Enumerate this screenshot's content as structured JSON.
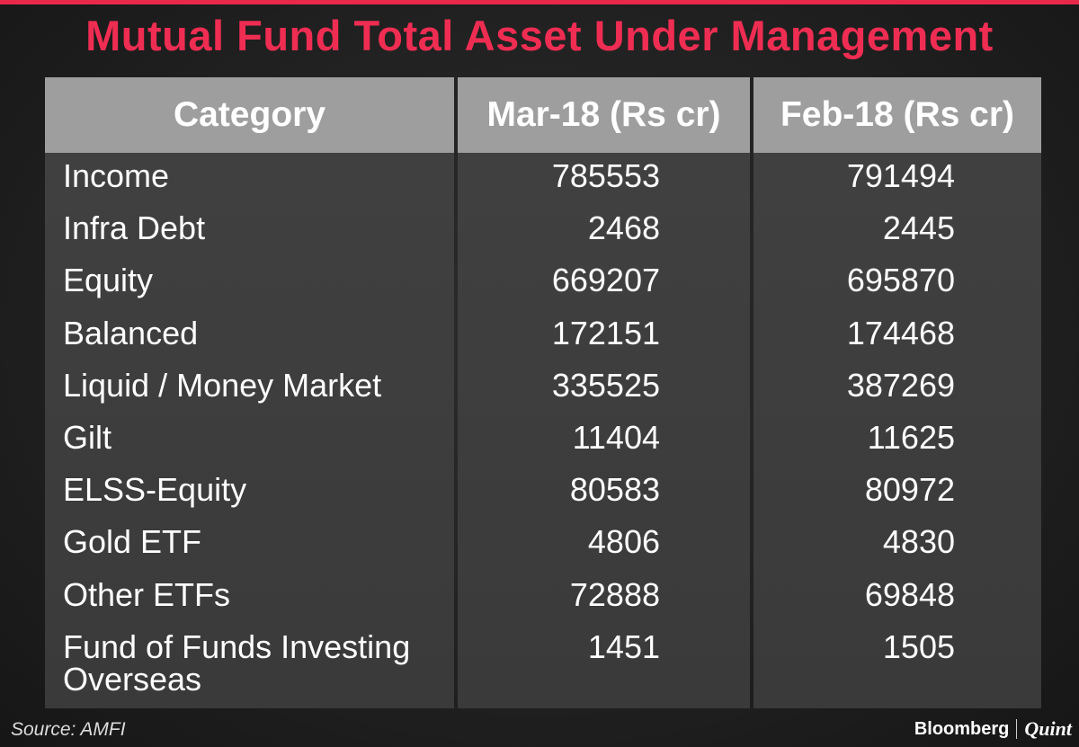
{
  "title": "Mutual Fund Total Asset Under Management",
  "source": "Source: AMFI",
  "brand": {
    "primary": "Bloomberg",
    "secondary": "Quint"
  },
  "colors": {
    "accent": "#ef2d52",
    "header_bg": "#9e9e9e",
    "column_bg": "#3e3e3e",
    "page_bg": "#202020"
  },
  "chart_data": {
    "type": "table",
    "columns": [
      "Category",
      "Mar-18 (Rs cr)",
      "Feb-18 (Rs cr)"
    ],
    "rows": [
      {
        "category": "Income",
        "mar18": "785553",
        "feb18": "791494"
      },
      {
        "category": "Infra Debt",
        "mar18": "2468",
        "feb18": "2445"
      },
      {
        "category": "Equity",
        "mar18": "669207",
        "feb18": "695870"
      },
      {
        "category": "Balanced",
        "mar18": "172151",
        "feb18": "174468"
      },
      {
        "category": "Liquid / Money Market",
        "mar18": "335525",
        "feb18": "387269"
      },
      {
        "category": "Gilt",
        "mar18": "11404",
        "feb18": "11625"
      },
      {
        "category": "ELSS-Equity",
        "mar18": "80583",
        "feb18": "80972"
      },
      {
        "category": "Gold ETF",
        "mar18": "4806",
        "feb18": "4830"
      },
      {
        "category": "Other ETFs",
        "mar18": "72888",
        "feb18": "69848"
      },
      {
        "category": "Fund of Funds Investing Overseas",
        "mar18": "1451",
        "feb18": "1505"
      }
    ]
  }
}
